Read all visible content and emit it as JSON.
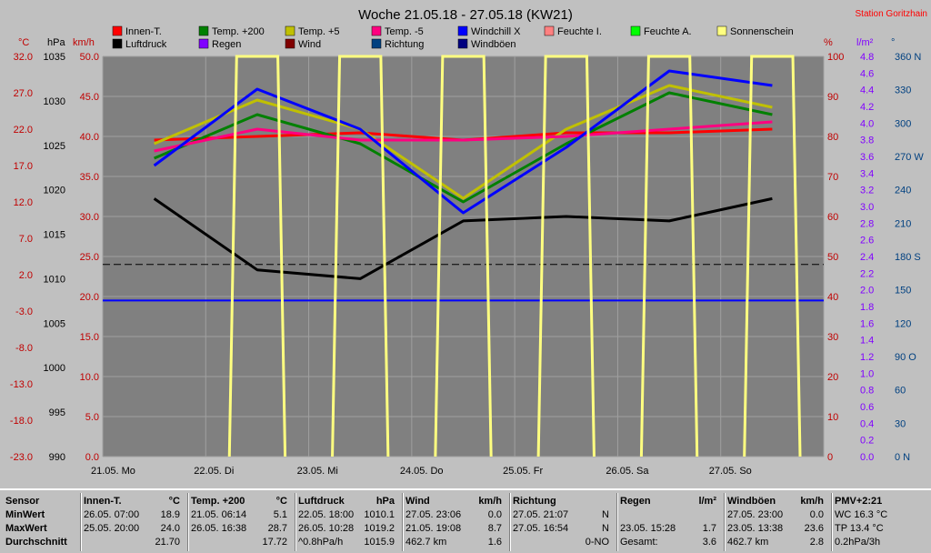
{
  "title": "Woche 21.05.18 - 27.05.18 (KW21)",
  "station": "Station Goritzhain",
  "units": {
    "c": "°C",
    "hpa": "hPa",
    "kmh": "km/h",
    "pct": "%",
    "lm2": "l/m²",
    "deg": "°"
  },
  "axes": {
    "celsius": [
      "32.0",
      "27.0",
      "22.0",
      "17.0",
      "12.0",
      "7.0",
      "2.0",
      "-3.0",
      "-8.0",
      "-13.0",
      "-18.0",
      "-23.0"
    ],
    "hpa": [
      "1035",
      "1030",
      "1025",
      "1020",
      "1015",
      "1010",
      "1005",
      "1000",
      "995",
      "990"
    ],
    "kmh": [
      "50.0",
      "45.0",
      "40.0",
      "35.0",
      "30.0",
      "25.0",
      "20.0",
      "15.0",
      "10.0",
      "5.0",
      "0.0"
    ],
    "pct": [
      "100",
      "90",
      "80",
      "70",
      "60",
      "50",
      "40",
      "30",
      "20",
      "10",
      "0"
    ],
    "rain": [
      "4.8",
      "4.6",
      "4.4",
      "4.2",
      "4.0",
      "3.8",
      "3.6",
      "3.4",
      "3.2",
      "3.0",
      "2.8",
      "2.6",
      "2.4",
      "2.2",
      "2.0",
      "1.8",
      "1.6",
      "1.4",
      "1.2",
      "1.0",
      "0.8",
      "0.6",
      "0.4",
      "0.2",
      "0.0"
    ],
    "dir": [
      "360 N",
      "330",
      "300",
      "270 W",
      "240",
      "210",
      "180 S",
      "150",
      "120",
      "90 O",
      "60",
      "30",
      "0 N"
    ],
    "days": [
      "21.05. Mo",
      "22.05. Di",
      "23.05. Mi",
      "24.05. Do",
      "25.05. Fr",
      "26.05. Sa",
      "27.05. So"
    ]
  },
  "legend": [
    {
      "label": "Innen-T.",
      "color": "#ff0000"
    },
    {
      "label": "Luftdruck",
      "color": "#000000"
    },
    {
      "label": "Temp. +200",
      "color": "#008000"
    },
    {
      "label": "Regen",
      "color": "#8000ff"
    },
    {
      "label": "Temp. +5",
      "color": "#c0c000"
    },
    {
      "label": "Wind",
      "color": "#800000"
    },
    {
      "label": "Temp. -5",
      "color": "#ff0080"
    },
    {
      "label": "Richtung",
      "color": "#004080"
    },
    {
      "label": "Windchill X",
      "color": "#0000ff"
    },
    {
      "label": "Windböen",
      "color": "#000080"
    },
    {
      "label": "Feuchte I.",
      "color": "#ff8080"
    },
    {
      "label": "Feuchte A.",
      "color": "#00ff00"
    },
    {
      "label": "Sonnenschein",
      "color": "#ffff80"
    }
  ],
  "chart_data": {
    "type": "line",
    "x": [
      "21.05. Mo",
      "22.05. Di",
      "23.05. Mi",
      "24.05. Do",
      "25.05. Fr",
      "26.05. Sa",
      "27.05. So"
    ],
    "ylim_celsius": [
      -23,
      32
    ],
    "ylim_hpa": [
      990,
      1035
    ],
    "ylim_kmh": [
      0,
      50
    ],
    "series": [
      {
        "name": "Innen-T.",
        "axis": "celsius",
        "values": [
          20.5,
          21.0,
          21.5,
          20.5,
          21.5,
          21.5,
          22.0
        ],
        "color": "#ff0000"
      },
      {
        "name": "Luftdruck",
        "axis": "hpa",
        "values": [
          1019.0,
          1011.0,
          1010.0,
          1016.5,
          1017.0,
          1016.5,
          1019.0
        ],
        "color": "#000000"
      },
      {
        "name": "Temp. +200",
        "axis": "celsius",
        "values": [
          18.0,
          24.0,
          20.0,
          12.0,
          20.0,
          27.0,
          24.0
        ],
        "color": "#008000"
      },
      {
        "name": "Temp. +5",
        "axis": "celsius",
        "values": [
          20.0,
          26.0,
          22.0,
          12.5,
          22.0,
          28.0,
          25.0
        ],
        "color": "#c0c000"
      },
      {
        "name": "Temp. -5",
        "axis": "celsius",
        "values": [
          19.0,
          22.0,
          20.5,
          20.5,
          21.0,
          22.0,
          23.0
        ],
        "color": "#ff0080"
      },
      {
        "name": "Windchill X",
        "axis": "celsius",
        "values": [
          17.0,
          27.5,
          22.0,
          10.5,
          19.5,
          30.0,
          28.0
        ],
        "color": "#0000ff"
      },
      {
        "name": "Sonnenschein",
        "axis": "kmh",
        "values": [
          0,
          50,
          50,
          50,
          50,
          50,
          50
        ],
        "color": "#ffff80"
      }
    ],
    "dashed_line_kmh": 24.0,
    "blue_line_kmh": 19.5
  },
  "table": [
    {
      "h": "Sensor",
      "u": "",
      "r": [
        "MinWert",
        "MaxWert",
        "Durchschnitt"
      ],
      "v": []
    },
    {
      "h": "Innen-T.",
      "u": "°C",
      "r": [
        "26.05.  07:00",
        "25.05.  20:00",
        ""
      ],
      "v": [
        "18.9",
        "24.0",
        "21.70"
      ]
    },
    {
      "h": "Temp. +200",
      "u": "°C",
      "r": [
        "21.05.  06:14",
        "26.05.  16:38",
        ""
      ],
      "v": [
        "5.1",
        "28.7",
        "17.72"
      ]
    },
    {
      "h": "Luftdruck",
      "u": "hPa",
      "r": [
        "22.05.  18:00",
        "26.05.  10:28",
        "^0.8hPa/h"
      ],
      "v": [
        "1010.1",
        "1019.2",
        "1015.9"
      ]
    },
    {
      "h": "Wind",
      "u": "km/h",
      "r": [
        "27.05.  23:06",
        "21.05.  19:08",
        "462.7 km"
      ],
      "v": [
        "0.0",
        "8.7",
        "1.6"
      ]
    },
    {
      "h": "Richtung",
      "u": "",
      "r": [
        "27.05.  21:07",
        "27.05.  16:54",
        ""
      ],
      "v": [
        "N",
        "N",
        "0-NO"
      ]
    },
    {
      "h": "Regen",
      "u": "l/m²",
      "r": [
        "",
        "23.05.  15:28",
        "Gesamt:"
      ],
      "v": [
        "",
        "1.7",
        "3.6"
      ]
    },
    {
      "h": "Windböen",
      "u": "km/h",
      "r": [
        "27.05.  23:00",
        "23.05.  13:38",
        "462.7 km"
      ],
      "v": [
        "0.0",
        "23.6",
        "2.8"
      ]
    },
    {
      "h": "PMV+2:21",
      "u": "",
      "r": [
        "WC 16.3 °C",
        "TP 13.4 °C",
        "0.2hPa/3h"
      ],
      "v": []
    }
  ]
}
